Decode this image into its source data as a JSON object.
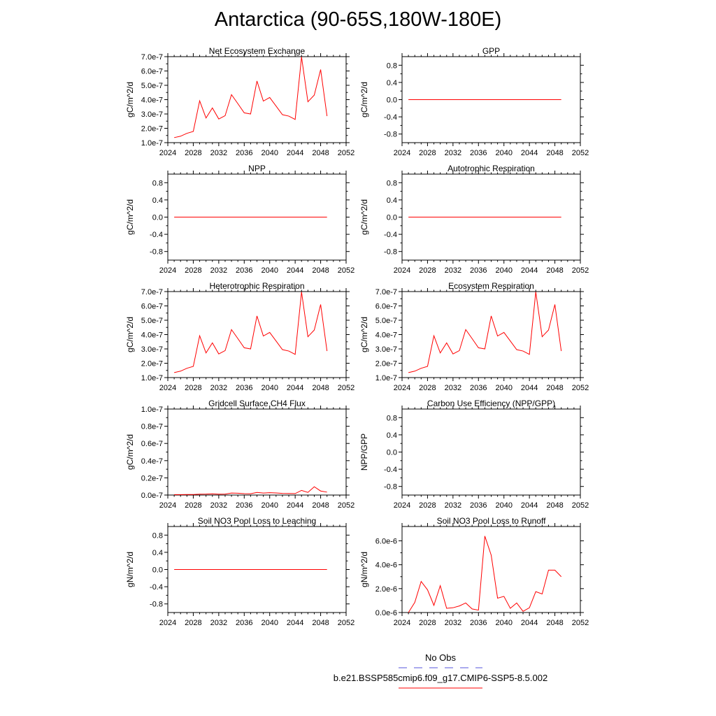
{
  "title": "Antarctica (90-65S,180W-180E)",
  "legend": {
    "obs_label": "No Obs",
    "obs_color": "#5555dd",
    "run_label": "b.e21.BSSP585cmip6.f09_g17.CMIP6-SSP5-8.5.002",
    "run_color": "#ff0000"
  },
  "chart_data": [
    {
      "type": "line",
      "title": "Net Ecosystem Exchange",
      "ylabel": "gC/m^2/d",
      "xlim": [
        2024,
        2052
      ],
      "xticks": [
        "2024",
        "2028",
        "2032",
        "2036",
        "2040",
        "2044",
        "2048",
        "2052"
      ],
      "ylim": [
        1e-07,
        7e-07
      ],
      "yticks": [
        1e-07,
        2e-07,
        3e-07,
        4e-07,
        5e-07,
        6e-07,
        7e-07
      ],
      "yticklabels": [
        "1.0e-7",
        "2.0e-7",
        "3.0e-7",
        "4.0e-7",
        "5.0e-7",
        "6.0e-7",
        "7.0e-7"
      ],
      "x": [
        2025,
        2026,
        2027,
        2028,
        2029,
        2030,
        2031,
        2032,
        2033,
        2034,
        2035,
        2036,
        2037,
        2038,
        2039,
        2040,
        2041,
        2042,
        2043,
        2044,
        2045,
        2046,
        2047,
        2048,
        2049
      ],
      "y": [
        1.35e-07,
        1.45e-07,
        1.65e-07,
        1.78e-07,
        3.92e-07,
        2.72e-07,
        3.42e-07,
        2.65e-07,
        2.88e-07,
        4.35e-07,
        3.72e-07,
        3.08e-07,
        3e-07,
        5.3e-07,
        3.9e-07,
        4.15e-07,
        3.55e-07,
        2.95e-07,
        2.85e-07,
        2.62e-07,
        6.98e-07,
        3.85e-07,
        4.32e-07,
        6.1e-07,
        2.85e-07
      ],
      "color": "#ff0000"
    },
    {
      "type": "line",
      "title": "GPP",
      "ylabel": "gC/m^2/d",
      "xlim": [
        2024,
        2052
      ],
      "xticks": [
        "2024",
        "2028",
        "2032",
        "2036",
        "2040",
        "2044",
        "2048",
        "2052"
      ],
      "ylim": [
        -1.0,
        1.0
      ],
      "yticks": [
        -0.8,
        -0.4,
        0.0,
        0.4,
        0.8
      ],
      "yticklabels": [
        "-0.8",
        "-0.4",
        "0.0",
        "0.4",
        "0.8"
      ],
      "x": [
        2025,
        2049
      ],
      "y": [
        0,
        0
      ],
      "color": "#ff0000"
    },
    {
      "type": "line",
      "title": "NPP",
      "ylabel": "gC/m^2/d",
      "xlim": [
        2024,
        2052
      ],
      "xticks": [
        "2024",
        "2028",
        "2032",
        "2036",
        "2040",
        "2044",
        "2048",
        "2052"
      ],
      "ylim": [
        -1.0,
        1.0
      ],
      "yticks": [
        -0.8,
        -0.4,
        0.0,
        0.4,
        0.8
      ],
      "yticklabels": [
        "-0.8",
        "-0.4",
        "0.0",
        "0.4",
        "0.8"
      ],
      "x": [
        2025,
        2049
      ],
      "y": [
        0,
        0
      ],
      "color": "#ff0000"
    },
    {
      "type": "line",
      "title": "Autotrophic Respiration",
      "ylabel": "gC/m^2/d",
      "xlim": [
        2024,
        2052
      ],
      "xticks": [
        "2024",
        "2028",
        "2032",
        "2036",
        "2040",
        "2044",
        "2048",
        "2052"
      ],
      "ylim": [
        -1.0,
        1.0
      ],
      "yticks": [
        -0.8,
        -0.4,
        0.0,
        0.4,
        0.8
      ],
      "yticklabels": [
        "-0.8",
        "-0.4",
        "0.0",
        "0.4",
        "0.8"
      ],
      "x": [
        2025,
        2049
      ],
      "y": [
        0,
        0
      ],
      "color": "#ff0000"
    },
    {
      "type": "line",
      "title": "Heterotrophic Respiration",
      "ylabel": "gC/m^2/d",
      "xlim": [
        2024,
        2052
      ],
      "xticks": [
        "2024",
        "2028",
        "2032",
        "2036",
        "2040",
        "2044",
        "2048",
        "2052"
      ],
      "ylim": [
        1e-07,
        7e-07
      ],
      "yticks": [
        1e-07,
        2e-07,
        3e-07,
        4e-07,
        5e-07,
        6e-07,
        7e-07
      ],
      "yticklabels": [
        "1.0e-7",
        "2.0e-7",
        "3.0e-7",
        "4.0e-7",
        "5.0e-7",
        "6.0e-7",
        "7.0e-7"
      ],
      "x": [
        2025,
        2026,
        2027,
        2028,
        2029,
        2030,
        2031,
        2032,
        2033,
        2034,
        2035,
        2036,
        2037,
        2038,
        2039,
        2040,
        2041,
        2042,
        2043,
        2044,
        2045,
        2046,
        2047,
        2048,
        2049
      ],
      "y": [
        1.35e-07,
        1.45e-07,
        1.65e-07,
        1.78e-07,
        3.92e-07,
        2.72e-07,
        3.42e-07,
        2.65e-07,
        2.88e-07,
        4.35e-07,
        3.72e-07,
        3.08e-07,
        3e-07,
        5.3e-07,
        3.9e-07,
        4.15e-07,
        3.55e-07,
        2.95e-07,
        2.85e-07,
        2.62e-07,
        6.98e-07,
        3.85e-07,
        4.32e-07,
        6.1e-07,
        2.85e-07
      ],
      "color": "#ff0000"
    },
    {
      "type": "line",
      "title": "Ecosystem Respiration",
      "ylabel": "gC/m^2/d",
      "xlim": [
        2024,
        2052
      ],
      "xticks": [
        "2024",
        "2028",
        "2032",
        "2036",
        "2040",
        "2044",
        "2048",
        "2052"
      ],
      "ylim": [
        1e-07,
        7e-07
      ],
      "yticks": [
        1e-07,
        2e-07,
        3e-07,
        4e-07,
        5e-07,
        6e-07,
        7e-07
      ],
      "yticklabels": [
        "1.0e-7",
        "2.0e-7",
        "3.0e-7",
        "4.0e-7",
        "5.0e-7",
        "6.0e-7",
        "7.0e-7"
      ],
      "x": [
        2025,
        2026,
        2027,
        2028,
        2029,
        2030,
        2031,
        2032,
        2033,
        2034,
        2035,
        2036,
        2037,
        2038,
        2039,
        2040,
        2041,
        2042,
        2043,
        2044,
        2045,
        2046,
        2047,
        2048,
        2049
      ],
      "y": [
        1.35e-07,
        1.45e-07,
        1.65e-07,
        1.78e-07,
        3.92e-07,
        2.72e-07,
        3.42e-07,
        2.65e-07,
        2.88e-07,
        4.35e-07,
        3.72e-07,
        3.08e-07,
        3e-07,
        5.3e-07,
        3.9e-07,
        4.15e-07,
        3.55e-07,
        2.95e-07,
        2.85e-07,
        2.62e-07,
        6.98e-07,
        3.85e-07,
        4.32e-07,
        6.1e-07,
        2.85e-07
      ],
      "color": "#ff0000"
    },
    {
      "type": "line",
      "title": "Gridcell Surface CH4 Flux",
      "ylabel": "gC/m^2/d",
      "xlim": [
        2024,
        2052
      ],
      "xticks": [
        "2024",
        "2028",
        "2032",
        "2036",
        "2040",
        "2044",
        "2048",
        "2052"
      ],
      "ylim": [
        0.0,
        1e-07
      ],
      "yticks": [
        0.0,
        2e-08,
        4e-08,
        6e-08,
        8e-08,
        1e-07
      ],
      "yticklabels": [
        "0.0e-7",
        "0.2e-7",
        "0.4e-7",
        "0.6e-7",
        "0.8e-7",
        "1.0e-7"
      ],
      "x": [
        2025,
        2026,
        2027,
        2028,
        2029,
        2030,
        2031,
        2032,
        2033,
        2034,
        2035,
        2036,
        2037,
        2038,
        2039,
        2040,
        2041,
        2042,
        2043,
        2044,
        2045,
        2046,
        2047,
        2048,
        2049
      ],
      "y": [
        5e-10,
        5e-10,
        6e-10,
        6e-10,
        1e-09,
        1.1e-09,
        1.4e-09,
        1e-09,
        1.1e-09,
        2.3e-09,
        2.1e-09,
        1.6e-09,
        1.5e-09,
        3e-09,
        2.3e-09,
        2.7e-09,
        2.4e-09,
        1.9e-09,
        1.8e-09,
        1.7e-09,
        5.4e-09,
        3.1e-09,
        9.7e-09,
        4.7e-09,
        3.4e-09
      ],
      "color": "#ff0000"
    },
    {
      "type": "line",
      "title": "Carbon Use Efficiency (NPP/GPP)",
      "ylabel": "NPP/GPP",
      "xlim": [
        2024,
        2052
      ],
      "xticks": [
        "2024",
        "2028",
        "2032",
        "2036",
        "2040",
        "2044",
        "2048",
        "2052"
      ],
      "ylim": [
        -1.0,
        1.0
      ],
      "yticks": [
        -0.8,
        -0.4,
        0.0,
        0.4,
        0.8
      ],
      "yticklabels": [
        "-0.8",
        "-0.4",
        "0.0",
        "0.4",
        "0.8"
      ],
      "x": [],
      "y": [],
      "color": "#ff0000"
    },
    {
      "type": "line",
      "title": "Soil NO3 Pool Loss to Leaching",
      "ylabel": "gN/m^2/d",
      "xlim": [
        2024,
        2052
      ],
      "xticks": [
        "2024",
        "2028",
        "2032",
        "2036",
        "2040",
        "2044",
        "2048",
        "2052"
      ],
      "ylim": [
        -1.0,
        1.0
      ],
      "yticks": [
        -0.8,
        -0.4,
        0.0,
        0.4,
        0.8
      ],
      "yticklabels": [
        "-0.8",
        "-0.4",
        "0.0",
        "0.4",
        "0.8"
      ],
      "x": [
        2025,
        2049
      ],
      "y": [
        0,
        0
      ],
      "color": "#ff0000"
    },
    {
      "type": "line",
      "title": "Soil NO3 Pool Loss to Runoff",
      "ylabel": "gN/m^2/d",
      "xlim": [
        2024,
        2052
      ],
      "xticks": [
        "2024",
        "2028",
        "2032",
        "2036",
        "2040",
        "2044",
        "2048",
        "2052"
      ],
      "ylim": [
        0.0,
        7.2e-06
      ],
      "yticks": [
        0.0,
        2e-06,
        4e-06,
        6e-06
      ],
      "yticklabels": [
        "0.0e-6",
        "2.0e-6",
        "4.0e-6",
        "6.0e-6"
      ],
      "x": [
        2025,
        2026,
        2027,
        2028,
        2029,
        2030,
        2031,
        2032,
        2033,
        2034,
        2035,
        2036,
        2037,
        2038,
        2039,
        2040,
        2041,
        2042,
        2043,
        2044,
        2045,
        2046,
        2047,
        2048,
        2049
      ],
      "y": [
        0.0,
        8.5e-07,
        2.6e-06,
        1.9e-06,
        6e-07,
        2.25e-06,
        3.5e-07,
        4e-07,
        5.5e-07,
        8e-07,
        3e-07,
        2e-07,
        6.4e-06,
        4.8e-06,
        1.2e-06,
        1.35e-06,
        3.5e-07,
        8e-07,
        1e-07,
        4e-07,
        1.75e-06,
        1.55e-06,
        3.55e-06,
        3.55e-06,
        3e-06
      ],
      "color": "#ff0000"
    }
  ]
}
